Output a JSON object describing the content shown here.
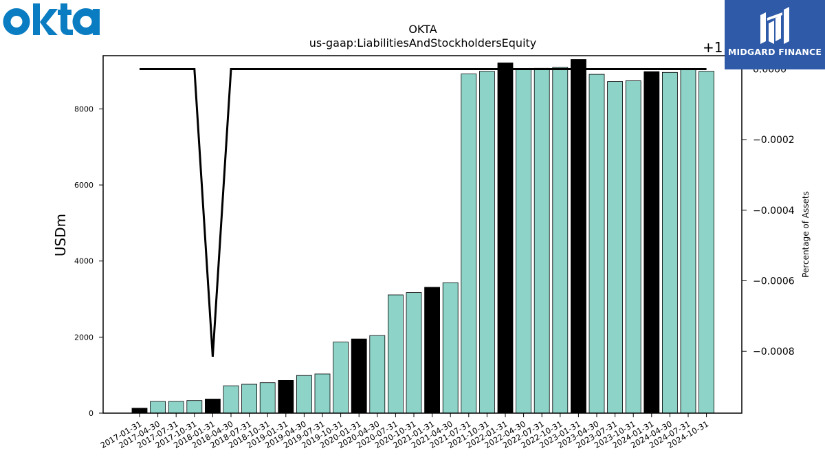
{
  "brand": {
    "company_logo": "okta",
    "company_logo_color": "#0a7cc1",
    "watermark_text": "MIDGARD FINANCE",
    "watermark_bg": "#2e5aa8"
  },
  "chart_data": {
    "type": "bar",
    "title": "OKTA",
    "subtitle": "us-gaap:LiabilitiesAndStockholdersEquity",
    "ylabel": "USDm",
    "y2label": "Percentage of Assets",
    "y2_offset_label": "+1",
    "ylim": [
      0,
      9400
    ],
    "y2lim": [
      -0.000975,
      3.8e-05
    ],
    "yticks": [
      0,
      2000,
      4000,
      6000,
      8000
    ],
    "y2ticks": [
      {
        "value": 0,
        "label": "0.0000"
      },
      {
        "value": -0.0002,
        "label": "−0.0002"
      },
      {
        "value": -0.0004,
        "label": "−0.0004"
      },
      {
        "value": -0.0006,
        "label": "−0.0006"
      },
      {
        "value": -0.0008,
        "label": "−0.0008"
      }
    ],
    "grid": false,
    "colors": {
      "quarter": "#8dd3c7",
      "fiscal_year_end": "#000000",
      "line": "#000000"
    },
    "categories": [
      "2017-01-31",
      "2017-04-30",
      "2017-07-31",
      "2017-10-31",
      "2018-01-31",
      "2018-04-30",
      "2018-07-31",
      "2018-10-31",
      "2019-01-31",
      "2019-04-30",
      "2019-07-31",
      "2019-10-31",
      "2020-01-31",
      "2020-04-30",
      "2020-07-31",
      "2020-10-31",
      "2021-01-31",
      "2021-04-30",
      "2021-07-31",
      "2021-10-31",
      "2022-01-31",
      "2022-04-30",
      "2022-07-31",
      "2022-10-31",
      "2023-01-31",
      "2023-04-30",
      "2023-07-31",
      "2023-10-31",
      "2024-01-31",
      "2024-04-30",
      "2024-07-31",
      "2024-10-31"
    ],
    "values": [
      130,
      310,
      310,
      330,
      370,
      720,
      760,
      800,
      860,
      990,
      1030,
      1870,
      1950,
      2040,
      3110,
      3170,
      3310,
      3430,
      8920,
      8990,
      9210,
      9030,
      9070,
      9090,
      9300,
      8910,
      8720,
      8740,
      8980,
      8960,
      9050,
      8990
    ],
    "highlight": [
      true,
      false,
      false,
      false,
      true,
      false,
      false,
      false,
      true,
      false,
      false,
      false,
      true,
      false,
      false,
      false,
      true,
      false,
      false,
      false,
      true,
      false,
      false,
      false,
      true,
      false,
      false,
      false,
      true,
      false,
      false,
      false
    ],
    "line_series": {
      "name": "Percentage of Assets",
      "values": [
        0,
        0,
        0,
        0,
        -0.000815,
        0,
        0,
        0,
        0,
        0,
        0,
        0,
        0,
        0,
        0,
        0,
        0,
        0,
        0,
        0,
        0,
        0,
        0,
        0,
        0,
        0,
        0,
        0,
        0,
        0,
        0,
        0
      ]
    }
  }
}
